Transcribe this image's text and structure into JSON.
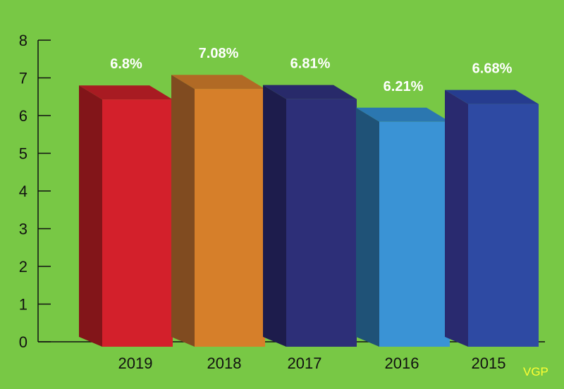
{
  "chart_data": {
    "type": "bar",
    "categories": [
      "2019",
      "2018",
      "2017",
      "2016",
      "2015"
    ],
    "values": [
      6.8,
      7.08,
      6.81,
      6.21,
      6.68
    ],
    "data_labels": [
      "6.8%",
      "7.08%",
      "6.81%",
      "6.21%",
      "6.68%"
    ],
    "yticks": [
      "0",
      "1",
      "2",
      "3",
      "4",
      "5",
      "6",
      "7",
      "8"
    ],
    "ylim": [
      0,
      8
    ],
    "title": "",
    "xlabel": "",
    "ylabel": "",
    "grid": false,
    "style": "3d-columns",
    "bar_colors": [
      {
        "front": "#d3202b",
        "side": "#821519",
        "top": "#a81b22"
      },
      {
        "front": "#d67f2a",
        "side": "#804b20",
        "top": "#b16a25"
      },
      {
        "front": "#2d2f78",
        "side": "#1d1c4c",
        "top": "#282a6a"
      },
      {
        "front": "#3a93d5",
        "side": "#1f5277",
        "top": "#2b77b0"
      },
      {
        "front": "#2e4aa3",
        "side": "#292a6f",
        "top": "#263c8f"
      }
    ],
    "background_color": "#78c845"
  },
  "credit": "VGP",
  "credit_color": "#ffff33"
}
